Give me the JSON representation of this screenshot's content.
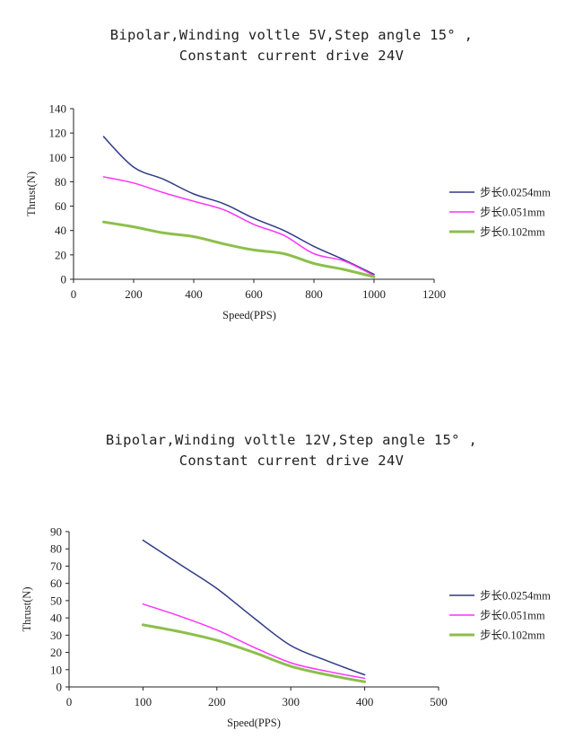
{
  "chart_data": [
    {
      "type": "line",
      "title": [
        "Bipolar,Winding voltle 5V,Step angle 15° ,",
        "Constant current drive 24V"
      ],
      "xlabel": "Speed(PPS)",
      "ylabel": "Thrust(N)",
      "xlim": [
        0,
        1200
      ],
      "ylim": [
        0,
        140
      ],
      "xticks": [
        "0",
        "200",
        "400",
        "600",
        "800",
        "1000",
        "1200"
      ],
      "yticks": [
        "0",
        "20",
        "40",
        "60",
        "80",
        "100",
        "120",
        "140"
      ],
      "legend_position": "right",
      "grid": false,
      "series": [
        {
          "name": "步长0.0254mm",
          "color": "#2e3a87",
          "width": 1.5,
          "x": [
            100,
            200,
            300,
            400,
            500,
            600,
            700,
            800,
            900,
            1000
          ],
          "y": [
            117,
            92,
            82,
            70,
            62,
            50,
            40,
            27,
            16,
            4
          ]
        },
        {
          "name": "步长0.051mm",
          "color": "#ff33ff",
          "width": 1.5,
          "x": [
            100,
            200,
            300,
            400,
            500,
            600,
            700,
            800,
            900,
            1000
          ],
          "y": [
            84,
            79,
            71,
            64,
            57,
            45,
            36,
            21,
            15,
            3
          ]
        },
        {
          "name": "步长0.102mm",
          "color": "#8cbf4a",
          "width": 3,
          "x": [
            100,
            200,
            300,
            400,
            500,
            600,
            700,
            800,
            900,
            1000
          ],
          "y": [
            47,
            43,
            38,
            35,
            29,
            24,
            21,
            13,
            8,
            2
          ]
        }
      ]
    },
    {
      "type": "line",
      "title": [
        "Bipolar,Winding voltle 12V,Step angle 15° ,",
        "Constant current drive 24V"
      ],
      "xlabel": "Speed(PPS)",
      "ylabel": "Thrust(N)",
      "xlim": [
        0,
        500
      ],
      "ylim": [
        0,
        90
      ],
      "xticks": [
        "0",
        "100",
        "200",
        "300",
        "400",
        "500"
      ],
      "yticks": [
        "0",
        "10",
        "20",
        "30",
        "40",
        "50",
        "60",
        "70",
        "80",
        "90"
      ],
      "legend_position": "right",
      "grid": false,
      "series": [
        {
          "name": "步长0.0254mm",
          "color": "#2e3a87",
          "width": 1.5,
          "x": [
            100,
            150,
            200,
            250,
            300,
            350,
            400
          ],
          "y": [
            85,
            71,
            57,
            40,
            24,
            15,
            7
          ]
        },
        {
          "name": "步长0.051mm",
          "color": "#ff33ff",
          "width": 1.5,
          "x": [
            100,
            150,
            200,
            250,
            300,
            350,
            400
          ],
          "y": [
            48,
            41,
            33,
            23,
            14,
            9,
            5
          ]
        },
        {
          "name": "步长0.102mm",
          "color": "#8cbf4a",
          "width": 3,
          "x": [
            100,
            150,
            200,
            250,
            300,
            350,
            400
          ],
          "y": [
            36,
            32,
            27,
            20,
            12,
            7,
            3
          ]
        }
      ]
    }
  ]
}
